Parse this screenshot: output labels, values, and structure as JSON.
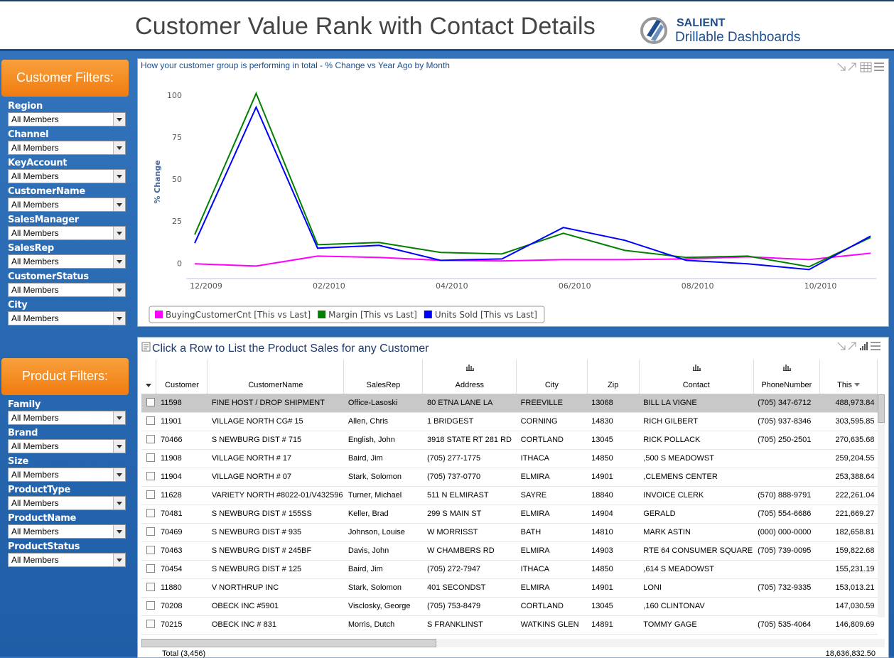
{
  "header": {
    "title": "Customer Value Rank with Contact Details",
    "logo_brand": "SALIENT",
    "logo_tagline": "Drillable Dashboards"
  },
  "filters": [
    {
      "title": "Customer Filters:",
      "fields": [
        {
          "label": "Region",
          "value": "All Members"
        },
        {
          "label": "Channel",
          "value": "All Members"
        },
        {
          "label": "KeyAccount",
          "value": "All Members"
        },
        {
          "label": "CustomerName",
          "value": "All Members"
        },
        {
          "label": "SalesManager",
          "value": "All Members"
        },
        {
          "label": "SalesRep",
          "value": "All Members"
        },
        {
          "label": "CustomerStatus",
          "value": "All Members"
        },
        {
          "label": "City",
          "value": "All Members"
        }
      ]
    },
    {
      "title": "Product Filters:",
      "fields": [
        {
          "label": "Family",
          "value": "All Members"
        },
        {
          "label": "Brand",
          "value": "All Members"
        },
        {
          "label": "Size",
          "value": "All Members"
        },
        {
          "label": "ProductType",
          "value": "All Members"
        },
        {
          "label": "ProductName",
          "value": "All Members"
        },
        {
          "label": "ProductStatus",
          "value": "All Members"
        }
      ]
    }
  ],
  "chart_data": {
    "type": "line",
    "title": "How your customer group is performing in total - % Change vs Year Ago by Month",
    "y_label": "% Change",
    "categories": [
      "12/2009",
      null,
      "02/2010",
      null,
      "04/2010",
      null,
      "06/2010",
      null,
      "08/2010",
      null,
      "10/2010",
      null
    ],
    "series": [
      {
        "name": "BuyingCustomerCnt [This vs Last]",
        "color": "#ff00ff",
        "values": [
          -0.4,
          -1.7,
          4.2,
          3.4,
          1.7,
          1.3,
          2.1,
          2.1,
          2.5,
          3.8,
          2.1,
          5.9
        ]
      },
      {
        "name": "Margin [This vs Last]",
        "color": "#008000",
        "values": [
          17,
          101,
          11,
          12.3,
          6.4,
          5.5,
          17.8,
          7.6,
          3.4,
          4.2,
          -2.1,
          15.3
        ]
      },
      {
        "name": "Units Sold [This vs Last]",
        "color": "#0000ff",
        "values": [
          11.9,
          92.8,
          8.9,
          10.6,
          1.7,
          2.5,
          21.2,
          13.6,
          1.7,
          -0.4,
          -3.8,
          16.1
        ]
      }
    ],
    "ylim": [
      -10,
      105
    ],
    "yticks": [
      0,
      25,
      50,
      75,
      100
    ],
    "grid": false,
    "legend": "bottom-left"
  },
  "table": {
    "title": "Click a Row to List the Product Sales for any Customer",
    "columns": [
      "Customer",
      "CustomerName",
      "SalesRep",
      "Address",
      "City",
      "Zip",
      "Contact",
      "PhoneNumber",
      "This"
    ],
    "rows": [
      [
        "11598",
        "FINE HOST / DROP SHIPMENT",
        "Office-Lasoski",
        "80 ETNA LANE LA",
        "FREEVILLE",
        "13068",
        "BILL LA VIGNE",
        "(705) 347-6712",
        "488,973.84"
      ],
      [
        "11901",
        "VILLAGE NORTH CG# 15",
        "Allen, Chris",
        "1 BRIDGEST",
        "CORNING",
        "14830",
        "RICH GILBERT",
        "(705) 937-8346",
        "303,595.85"
      ],
      [
        "70466",
        "S NEWBURG DIST # 715",
        "English, John",
        "3918 STATE RT 281 RD",
        "CORTLAND",
        "13045",
        "RICK POLLACK",
        "(705) 250-2501",
        "270,635.68"
      ],
      [
        "11908",
        "VILLAGE NORTH # 17",
        "Baird, Jim",
        "(705) 277-1775",
        "ITHACA",
        "14850",
        ",500 S MEADOWST",
        null,
        "259,204.55"
      ],
      [
        "11904",
        "VILLAGE NORTH # 07",
        "Stark, Solomon",
        "(705) 737-0770",
        "ELMIRA",
        "14901",
        ",CLEMENS CENTER",
        null,
        "253,388.64"
      ],
      [
        "11628",
        "VARIETY NORTH #8022-01/V432596",
        "Turner, Michael",
        "511 N ELMIRAST",
        "SAYRE",
        "18840",
        "INVOICE CLERK",
        "(570) 888-9791",
        "222,261.04"
      ],
      [
        "70481",
        "S NEWBURG DIST # 155SS",
        "Keller, Brad",
        "299 S MAIN ST",
        "ELMIRA",
        "14904",
        "GERALD",
        "(705) 554-6686",
        "221,669.27"
      ],
      [
        "70469",
        "S NEWBURG DIST # 935",
        "Johnson, Louise",
        "W MORRISST",
        "BATH",
        "14810",
        "MARK ASTIN",
        "(000) 000-0000",
        "182,658.81"
      ],
      [
        "70463",
        "S NEWBURG DIST # 245BF",
        "Davis, John",
        "W CHAMBERS RD",
        "ELMIRA",
        "14903",
        "RTE 64 CONSUMER SQUARE",
        "(705) 739-0095",
        "159,822.68"
      ],
      [
        "70454",
        "S NEWBURG DIST # 125",
        "Baird, Jim",
        "(705) 272-7947",
        "ITHACA",
        "14850",
        ",614 S MEADOWST",
        null,
        "155,231.19"
      ],
      [
        "11880",
        "V NORTHRUP INC",
        "Stark, Solomon",
        "401 SECONDST",
        "ELMIRA",
        "14901",
        "LONI",
        "(705) 732-9335",
        "153,013.21"
      ],
      [
        "70208",
        "OBECK INC #5901",
        "Visclosky, George",
        "(705) 753-8479",
        "CORTLAND",
        "13045",
        ",160 CLINTONAV",
        null,
        "147,030.59"
      ],
      [
        "70215",
        "OBECK INC # 831",
        "Morris, Dutch",
        "S FRANKLINST",
        "WATKINS GLEN",
        "14891",
        "TOMMY GAGE",
        "(705) 535-4064",
        "146,809.69"
      ]
    ],
    "total_label": "Total (3,456)",
    "total_value": "18,636,832.50"
  }
}
